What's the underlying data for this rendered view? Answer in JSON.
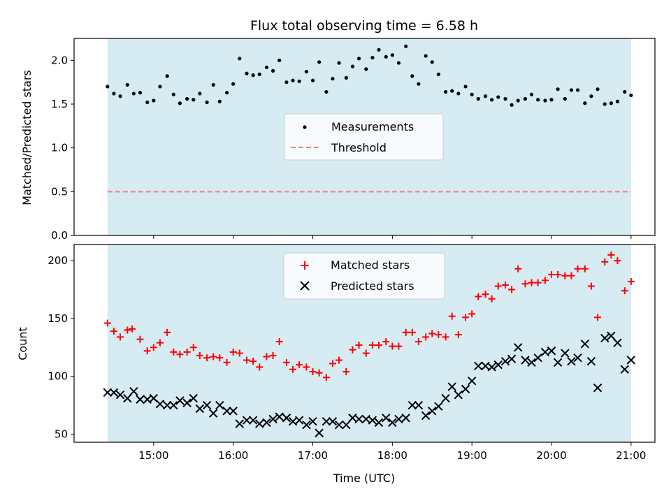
{
  "chart_data": {
    "type": "scatter",
    "title": "Flux total observing time = 6.58 h",
    "shared_x": {
      "xlabel": "Time (UTC)",
      "xlim_hours": [
        14.0,
        21.3
      ],
      "tick_values_hours": [
        15,
        16,
        17,
        18,
        19,
        20,
        21
      ],
      "tick_labels": [
        "15:00",
        "16:00",
        "17:00",
        "18:00",
        "19:00",
        "20:00",
        "21:00"
      ],
      "observing_window_hours": [
        14.42,
        21.0
      ],
      "observing_window_color": "#add8e6"
    },
    "panels": [
      {
        "ylabel": "Matched/Predicted stars",
        "ylim": [
          0,
          2.25
        ],
        "yticks": [
          0.0,
          0.5,
          1.0,
          1.5,
          2.0
        ],
        "ytick_labels": [
          "0.0",
          "0.5",
          "1.0",
          "1.5",
          "2.0"
        ],
        "legend_position": "center",
        "series": [
          {
            "name": "Measurements",
            "marker": "dot",
            "color": "#000000",
            "x": [
              14.42,
              14.5,
              14.58,
              14.67,
              14.75,
              14.83,
              14.92,
              15.0,
              15.08,
              15.17,
              15.25,
              15.33,
              15.42,
              15.5,
              15.58,
              15.67,
              15.75,
              15.83,
              15.92,
              16.0,
              16.08,
              16.17,
              16.25,
              16.33,
              16.42,
              16.5,
              16.58,
              16.67,
              16.75,
              16.83,
              16.92,
              17.0,
              17.08,
              17.17,
              17.25,
              17.33,
              17.42,
              17.5,
              17.58,
              17.67,
              17.75,
              17.83,
              17.92,
              18.0,
              18.08,
              18.17,
              18.25,
              18.33,
              18.42,
              18.5,
              18.58,
              18.67,
              18.75,
              18.83,
              18.92,
              19.0,
              19.08,
              19.17,
              19.25,
              19.33,
              19.42,
              19.5,
              19.58,
              19.67,
              19.75,
              19.83,
              19.92,
              20.0,
              20.08,
              20.17,
              20.25,
              20.33,
              20.42,
              20.5,
              20.58,
              20.67,
              20.75,
              20.83,
              20.92,
              21.0
            ],
            "values": [
              1.7,
              1.62,
              1.59,
              1.72,
              1.62,
              1.63,
              1.52,
              1.54,
              1.7,
              1.82,
              1.61,
              1.51,
              1.56,
              1.55,
              1.62,
              1.52,
              1.72,
              1.53,
              1.63,
              1.73,
              2.02,
              1.85,
              1.83,
              1.84,
              1.92,
              1.88,
              2.0,
              1.75,
              1.77,
              1.76,
              1.87,
              1.77,
              1.98,
              1.64,
              1.79,
              1.97,
              1.8,
              1.93,
              2.02,
              1.9,
              2.03,
              2.12,
              2.04,
              2.06,
              1.97,
              2.16,
              1.82,
              1.73,
              2.05,
              1.98,
              1.84,
              1.64,
              1.65,
              1.62,
              1.7,
              1.61,
              1.56,
              1.59,
              1.55,
              1.58,
              1.56,
              1.49,
              1.54,
              1.56,
              1.61,
              1.55,
              1.54,
              1.55,
              1.67,
              1.56,
              1.66,
              1.66,
              1.51,
              1.59,
              1.67,
              1.5,
              1.51,
              1.53,
              1.64,
              1.6
            ]
          },
          {
            "name": "Threshold",
            "marker": "dashed-line",
            "color": "#f08080",
            "x": [
              14.42,
              21.0
            ],
            "values": [
              0.5,
              0.5
            ]
          }
        ]
      },
      {
        "ylabel": "Count",
        "ylim": [
          43,
          214
        ],
        "yticks": [
          50,
          100,
          150,
          200
        ],
        "ytick_labels": [
          "50",
          "100",
          "150",
          "200"
        ],
        "legend_position": "top-center",
        "series": [
          {
            "name": "Matched stars",
            "marker": "plus",
            "color": "#ff0000",
            "x": [
              14.42,
              14.5,
              14.58,
              14.67,
              14.73,
              14.83,
              14.92,
              15.0,
              15.08,
              15.17,
              15.25,
              15.33,
              15.42,
              15.5,
              15.58,
              15.67,
              15.75,
              15.83,
              15.92,
              16.0,
              16.08,
              16.17,
              16.25,
              16.33,
              16.42,
              16.5,
              16.58,
              16.67,
              16.75,
              16.83,
              16.92,
              17.0,
              17.08,
              17.17,
              17.25,
              17.33,
              17.42,
              17.5,
              17.58,
              17.67,
              17.75,
              17.83,
              17.92,
              18.0,
              18.08,
              18.17,
              18.25,
              18.33,
              18.42,
              18.5,
              18.58,
              18.67,
              18.75,
              18.83,
              18.92,
              19.0,
              19.08,
              19.17,
              19.25,
              19.33,
              19.42,
              19.5,
              19.58,
              19.67,
              19.75,
              19.83,
              19.92,
              20.0,
              20.08,
              20.17,
              20.25,
              20.33,
              20.42,
              20.5,
              20.58,
              20.67,
              20.75,
              20.83,
              20.92,
              21.0
            ],
            "values": [
              146,
              139,
              134,
              140,
              141,
              132,
              122,
              125,
              129,
              138,
              121,
              119,
              121,
              125,
              118,
              116,
              117,
              116,
              112,
              121,
              120,
              114,
              113,
              108,
              117,
              118,
              130,
              112,
              106,
              110,
              108,
              104,
              103,
              99,
              111,
              114,
              104,
              123,
              127,
              120,
              127,
              127,
              130,
              126,
              126,
              138,
              138,
              130,
              134,
              137,
              136,
              134,
              152,
              136,
              151,
              154,
              169,
              171,
              167,
              178,
              179,
              175,
              193,
              180,
              181,
              181,
              183,
              188,
              188,
              187,
              187,
              193,
              193,
              178,
              151,
              199,
              205,
              200,
              174,
              182
            ]
          },
          {
            "name": "Predicted stars",
            "marker": "x",
            "color": "#000000",
            "x": [
              14.42,
              14.5,
              14.58,
              14.67,
              14.75,
              14.83,
              14.92,
              15.0,
              15.08,
              15.17,
              15.25,
              15.33,
              15.42,
              15.5,
              15.58,
              15.67,
              15.75,
              15.83,
              15.92,
              16.0,
              16.08,
              16.17,
              16.25,
              16.33,
              16.42,
              16.5,
              16.58,
              16.67,
              16.75,
              16.83,
              16.92,
              17.0,
              17.08,
              17.17,
              17.25,
              17.33,
              17.42,
              17.5,
              17.58,
              17.67,
              17.75,
              17.83,
              17.92,
              18.0,
              18.08,
              18.17,
              18.25,
              18.33,
              18.42,
              18.5,
              18.58,
              18.67,
              18.75,
              18.83,
              18.92,
              19.0,
              19.08,
              19.17,
              19.25,
              19.33,
              19.42,
              19.5,
              19.58,
              19.67,
              19.75,
              19.83,
              19.92,
              20.0,
              20.08,
              20.17,
              20.25,
              20.33,
              20.42,
              20.5,
              20.58,
              20.67,
              20.75,
              20.83,
              20.92,
              21.0
            ],
            "values": [
              86,
              86,
              84,
              81,
              87,
              80,
              80,
              81,
              76,
              75,
              75,
              79,
              77,
              81,
              72,
              75,
              68,
              75,
              70,
              70,
              59,
              62,
              62,
              59,
              60,
              63,
              65,
              64,
              61,
              62,
              58,
              61,
              51,
              61,
              61,
              58,
              58,
              64,
              63,
              63,
              62,
              60,
              64,
              60,
              63,
              64,
              75,
              75,
              66,
              70,
              74,
              81,
              91,
              84,
              89,
              96,
              109,
              109,
              108,
              110,
              113,
              115,
              125,
              114,
              112,
              116,
              121,
              122,
              112,
              120,
              113,
              116,
              128,
              113,
              90,
              133,
              135,
              129,
              106,
              114
            ]
          }
        ]
      }
    ]
  }
}
